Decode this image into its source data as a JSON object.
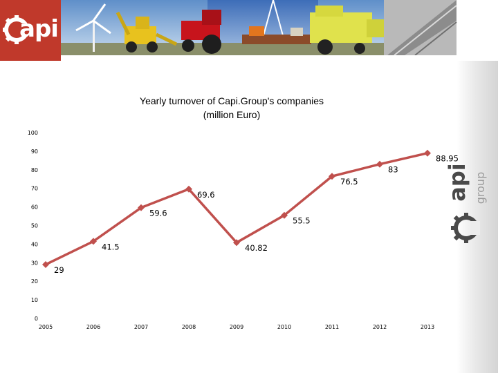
{
  "brand": {
    "logo_text": "api",
    "side_logo_word": "api",
    "side_logo_sub": "group"
  },
  "colors": {
    "line": "#c0504d",
    "brand_red": "#c0392b"
  },
  "chart_data": {
    "type": "line",
    "title_line1": "Yearly turnover of Capi.Group's companies",
    "title_line2": "(million Euro)",
    "x": [
      "2005",
      "2006",
      "2007",
      "2008",
      "2009",
      "2010",
      "2011",
      "2012",
      "2013"
    ],
    "series": [
      {
        "values": [
          29,
          41.5,
          59.6,
          69.6,
          40.82,
          55.5,
          76.5,
          83,
          88.95
        ]
      }
    ],
    "data_labels": [
      "29",
      "41.5",
      "59.6",
      "69.6",
      "40.82",
      "55.5",
      "76.5",
      "83",
      "88.95"
    ],
    "ylim": [
      0,
      100
    ],
    "yticks": [
      0,
      10,
      20,
      30,
      40,
      50,
      60,
      70,
      80,
      90,
      100
    ],
    "grid": false,
    "marker": "diamond"
  }
}
